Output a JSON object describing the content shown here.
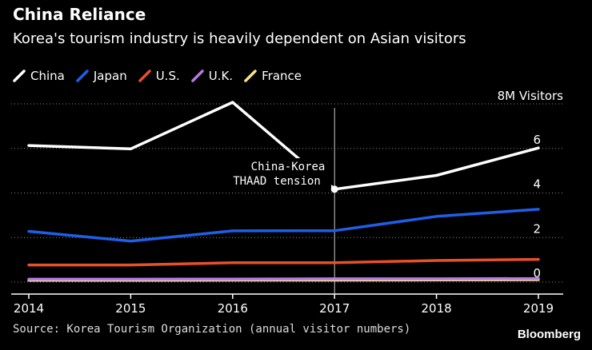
{
  "header": {
    "title": "China Reliance",
    "subtitle": "Korea's tourism industry is heavily dependent on Asian visitors"
  },
  "footer": {
    "source": "Source: Korea Tourism Organization (annual visitor numbers)",
    "brand": "Bloomberg"
  },
  "chart_data": {
    "type": "line",
    "title": "China Reliance",
    "subtitle": "Korea's tourism industry is heavily dependent on Asian visitors",
    "x": [
      2014,
      2015,
      2016,
      2017,
      2018,
      2019
    ],
    "x_tick_labels": [
      "2014",
      "2015",
      "2016",
      "2017",
      "2018",
      "2019"
    ],
    "y_unit_label": "8M Visitors",
    "y_ticks": [
      0,
      2,
      4,
      6
    ],
    "y_tick_labels": [
      "0",
      "2",
      "4",
      "6"
    ],
    "ylim": [
      -0.5,
      8
    ],
    "grid": "dotted horizontal",
    "legend_position": "top-left",
    "series": [
      {
        "name": "China",
        "color": "#ffffff",
        "values": [
          6.13,
          5.98,
          8.07,
          4.17,
          4.79,
          6.02
        ]
      },
      {
        "name": "Japan",
        "color": "#1f5fe8",
        "values": [
          2.28,
          1.84,
          2.3,
          2.31,
          2.95,
          3.27
        ]
      },
      {
        "name": "U.S.",
        "color": "#e8502a",
        "values": [
          0.77,
          0.77,
          0.87,
          0.87,
          0.97,
          1.02
        ]
      },
      {
        "name": "U.K.",
        "color": "#b57be6",
        "values": [
          0.13,
          0.13,
          0.14,
          0.15,
          0.15,
          0.16
        ]
      },
      {
        "name": "France",
        "color": "#f7e18b",
        "values": [
          0.08,
          0.08,
          0.09,
          0.09,
          0.1,
          0.11
        ]
      }
    ],
    "annotation": {
      "x": 2017,
      "line1": "China-Korea",
      "line2": "THAAD tension"
    }
  }
}
